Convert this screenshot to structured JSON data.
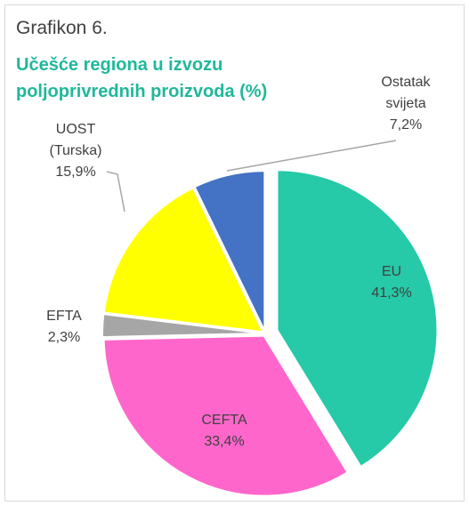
{
  "chart_data": {
    "type": "pie",
    "title": "Grafikon 6.",
    "subtitle": "Učešće regiona u izvozu poljoprivrednih proizvoda (%)",
    "categories": [
      "EU",
      "CEFTA",
      "EFTA",
      "UOST (Turska)",
      "Ostatak svijeta"
    ],
    "values": [
      41.3,
      33.4,
      2.3,
      15.9,
      7.2
    ],
    "value_labels": [
      "41,3%",
      "33,4%",
      "2,3%",
      "15,9%",
      "7,2%"
    ],
    "colors": [
      "#26c9a8",
      "#ff66cc",
      "#a6a6a6",
      "#ffff00",
      "#4472c4"
    ]
  }
}
